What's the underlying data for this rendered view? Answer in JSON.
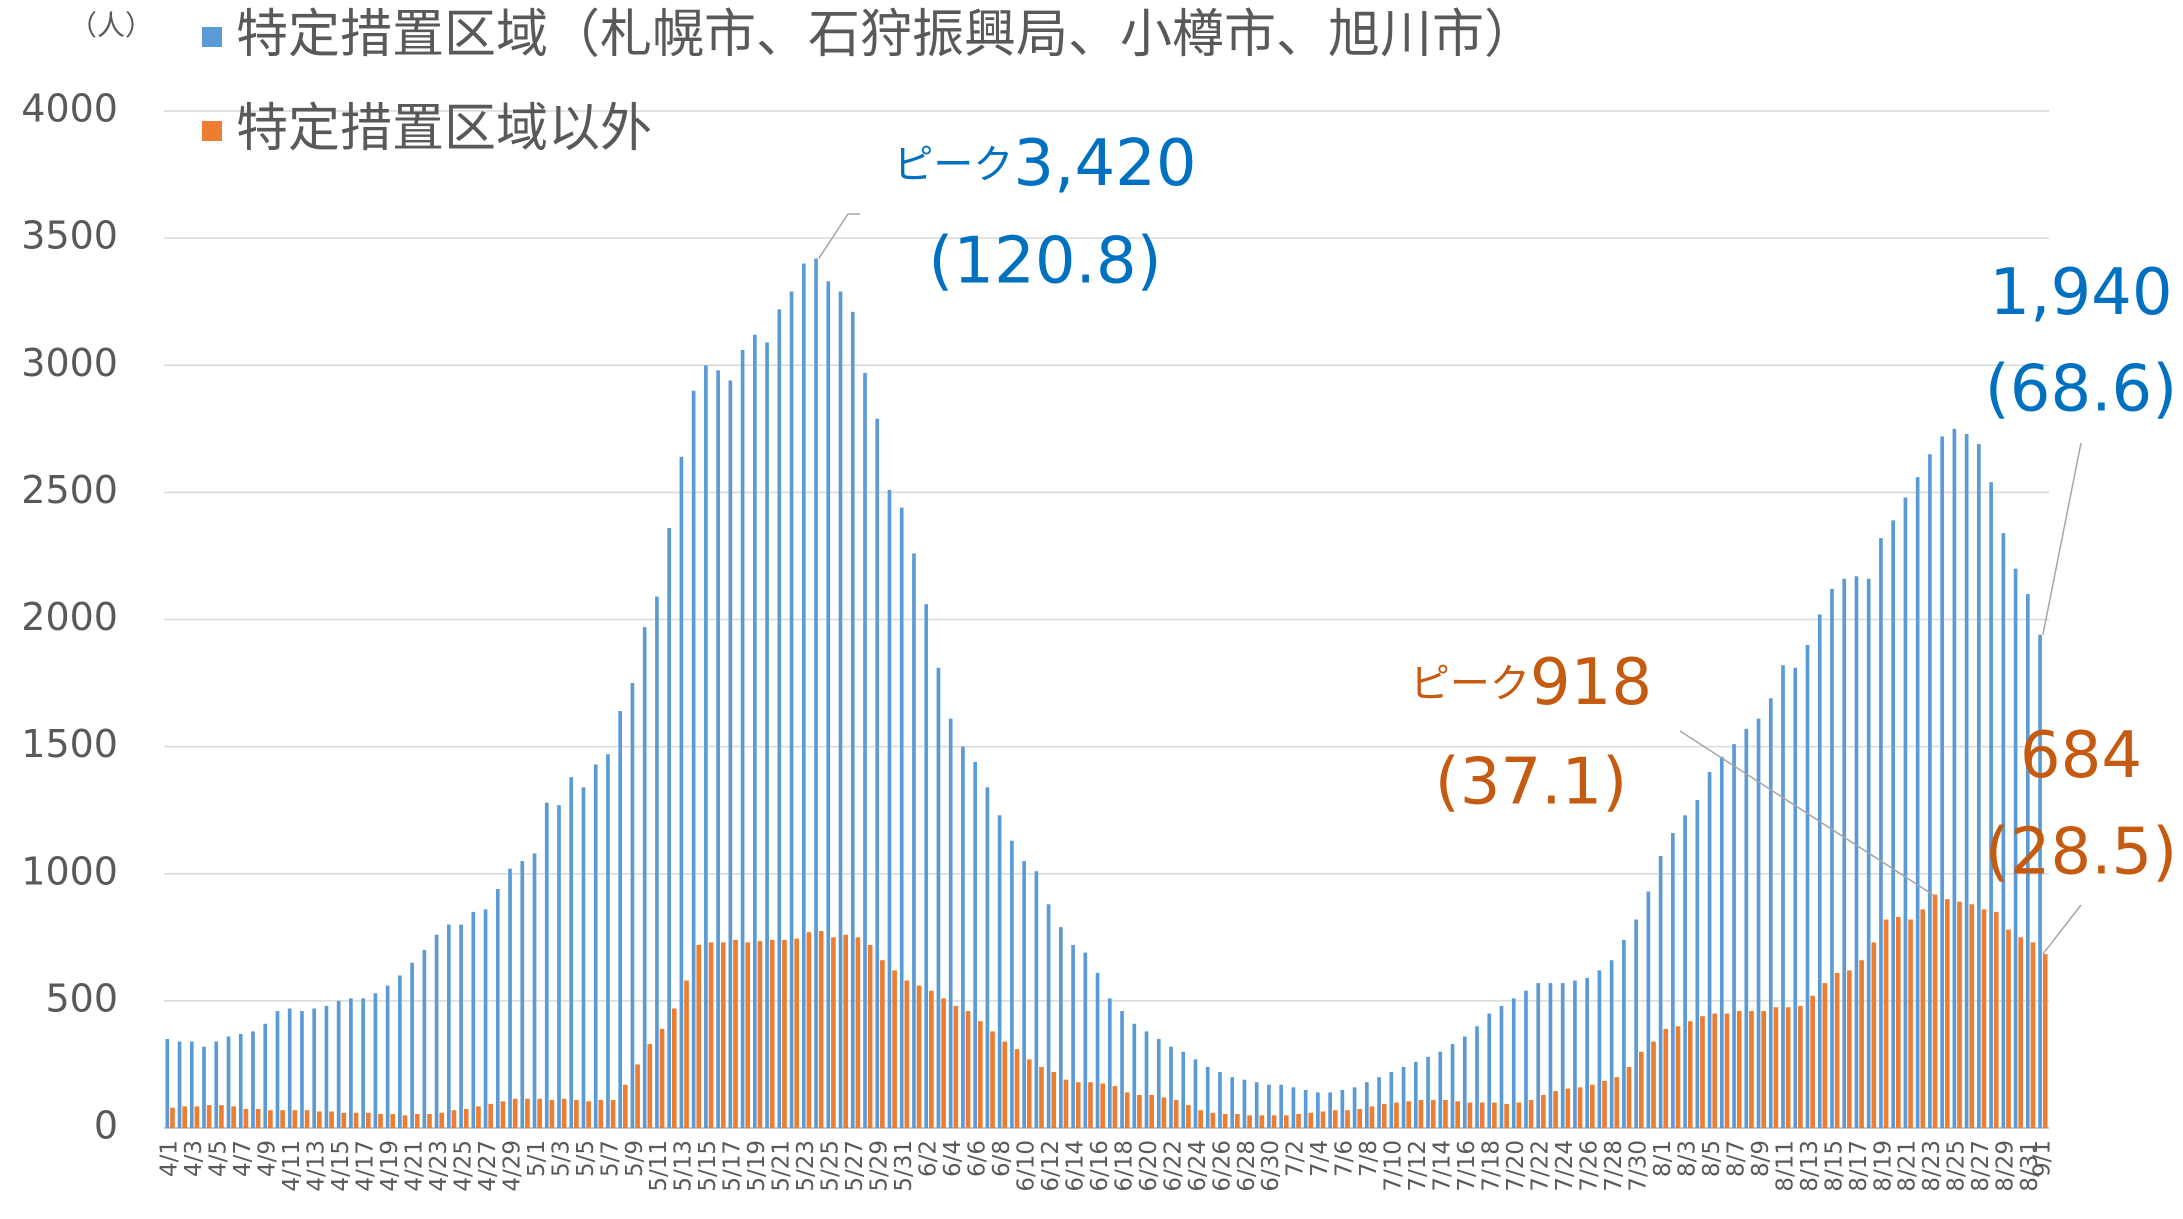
{
  "chart_data": {
    "type": "bar",
    "y_label": "（人）",
    "categories": [
      "4/1",
      null,
      "4/3",
      null,
      "4/5",
      null,
      "4/7",
      null,
      "4/9",
      null,
      "4/11",
      null,
      "4/13",
      null,
      "4/15",
      null,
      "4/17",
      null,
      "4/19",
      null,
      "4/21",
      null,
      "4/23",
      null,
      "4/25",
      null,
      "4/27",
      null,
      "4/29",
      null,
      "5/1",
      null,
      "5/3",
      null,
      "5/5",
      null,
      "5/7",
      null,
      "5/9",
      null,
      "5/11",
      null,
      "5/13",
      null,
      "5/15",
      null,
      "5/17",
      null,
      "5/19",
      null,
      "5/21",
      null,
      "5/23",
      null,
      "5/25",
      null,
      "5/27",
      null,
      "5/29",
      null,
      "5/31",
      null,
      "6/2",
      null,
      "6/4",
      null,
      "6/6",
      null,
      "6/8",
      null,
      "6/10",
      null,
      "6/12",
      null,
      "6/14",
      null,
      "6/16",
      null,
      "6/18",
      null,
      "6/20",
      null,
      "6/22",
      null,
      "6/24",
      null,
      "6/26",
      null,
      "6/28",
      null,
      "6/30",
      null,
      "7/2",
      null,
      "7/4",
      null,
      "7/6",
      null,
      "7/8",
      null,
      "7/10",
      null,
      "7/12",
      null,
      "7/14",
      null,
      "7/16",
      null,
      "7/18",
      null,
      "7/20",
      null,
      "7/22",
      null,
      "7/24",
      null,
      "7/26",
      null,
      "7/28",
      null,
      "7/30",
      null,
      "8/1",
      null,
      "8/3",
      null,
      "8/5",
      null,
      "8/7",
      null,
      "8/9",
      null,
      "8/11",
      null,
      "8/13",
      null,
      "8/15",
      null,
      "8/17",
      null,
      "8/19",
      null,
      "8/21",
      null,
      "8/23",
      null,
      "8/25",
      null,
      "8/27",
      null,
      "8/29",
      null,
      "8/31",
      "9/1"
    ],
    "series": [
      {
        "name": "特定措置区域（札幌市、石狩振興局、小樽市、旭川市）",
        "color": "#5b9bd5",
        "values": [
          350,
          340,
          340,
          320,
          340,
          360,
          370,
          380,
          410,
          460,
          470,
          460,
          470,
          480,
          500,
          510,
          510,
          530,
          560,
          600,
          650,
          700,
          760,
          800,
          800,
          850,
          860,
          940,
          1020,
          1050,
          1080,
          1280,
          1270,
          1380,
          1340,
          1430,
          1470,
          1640,
          1750,
          1970,
          2090,
          2360,
          2640,
          2900,
          3000,
          2980,
          2940,
          3060,
          3120,
          3090,
          3220,
          3290,
          3400,
          3420,
          3330,
          3290,
          3210,
          2970,
          2790,
          2510,
          2440,
          2260,
          2060,
          1810,
          1610,
          1500,
          1440,
          1340,
          1230,
          1130,
          1050,
          1010,
          880,
          790,
          720,
          690,
          610,
          510,
          460,
          410,
          380,
          350,
          320,
          300,
          270,
          240,
          220,
          200,
          190,
          180,
          170,
          170,
          160,
          150,
          140,
          140,
          150,
          160,
          180,
          200,
          220,
          240,
          260,
          280,
          300,
          330,
          360,
          400,
          450,
          480,
          510,
          540,
          570,
          570,
          570,
          580,
          590,
          620,
          660,
          740,
          820,
          930,
          1070,
          1160,
          1230,
          1290,
          1400,
          1460,
          1510,
          1570,
          1610,
          1690,
          1820,
          1810,
          1900,
          2020,
          2120,
          2160,
          2170,
          2160,
          2320,
          2390,
          2480,
          2560,
          2650,
          2720,
          2750,
          2730,
          2690,
          2540,
          2340,
          2200,
          2100,
          1940
        ]
      },
      {
        "name": "特定措置区域以外",
        "color": "#ed7d31",
        "values": [
          80,
          85,
          85,
          90,
          90,
          85,
          75,
          75,
          70,
          70,
          70,
          70,
          65,
          65,
          60,
          60,
          60,
          55,
          55,
          50,
          55,
          55,
          60,
          70,
          75,
          85,
          95,
          105,
          115,
          115,
          115,
          110,
          115,
          110,
          105,
          110,
          110,
          170,
          250,
          330,
          390,
          470,
          580,
          720,
          730,
          730,
          740,
          730,
          735,
          740,
          740,
          745,
          770,
          775,
          750,
          760,
          750,
          720,
          660,
          620,
          580,
          560,
          540,
          510,
          480,
          460,
          420,
          380,
          340,
          310,
          270,
          240,
          220,
          190,
          180,
          180,
          175,
          165,
          140,
          130,
          130,
          120,
          110,
          90,
          70,
          60,
          55,
          55,
          50,
          50,
          50,
          50,
          55,
          60,
          65,
          70,
          70,
          75,
          85,
          95,
          100,
          105,
          110,
          110,
          110,
          105,
          100,
          100,
          100,
          95,
          100,
          110,
          130,
          145,
          155,
          160,
          170,
          185,
          200,
          240,
          300,
          340,
          390,
          400,
          420,
          440,
          450,
          450,
          460,
          460,
          460,
          475,
          475,
          480,
          520,
          570,
          610,
          620,
          660,
          730,
          820,
          830,
          820,
          860,
          918,
          900,
          890,
          880,
          860,
          850,
          780,
          750,
          730,
          684
        ]
      }
    ],
    "ylim": [
      0,
      4000
    ],
    "yticks": [
      0,
      500,
      1000,
      1500,
      2000,
      2500,
      3000,
      3500,
      4000
    ],
    "grid": true,
    "annotations": [
      {
        "prefix": "ピーク",
        "text": "3,420",
        "sub": "(120.8)",
        "color": "#0070c0"
      },
      {
        "text": "1,940",
        "sub": "(68.6)",
        "color": "#0070c0"
      },
      {
        "prefix": "ピーク",
        "text": "918",
        "sub": "(37.1)",
        "color": "#c55a11"
      },
      {
        "text": "684",
        "sub": "(28.5)",
        "color": "#c55a11"
      }
    ]
  }
}
